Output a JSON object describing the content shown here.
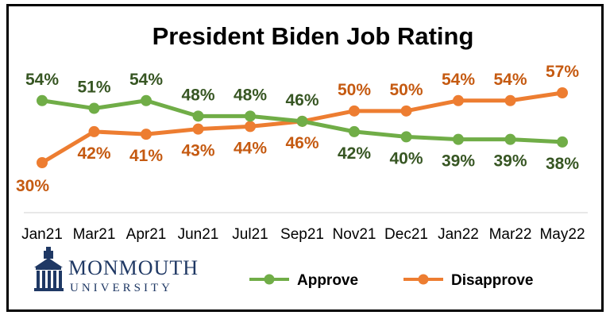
{
  "chart_data": {
    "type": "line",
    "title": "President Biden Job Rating",
    "categories": [
      "Jan21",
      "Mar21",
      "Apr21",
      "Jun21",
      "Jul21",
      "Sep21",
      "Nov21",
      "Dec21",
      "Jan22",
      "Mar22",
      "May22"
    ],
    "series": [
      {
        "name": "Approve",
        "color": "#70ad47",
        "label_color": "#375623",
        "values": [
          54,
          51,
          54,
          48,
          48,
          46,
          42,
          40,
          39,
          39,
          38
        ]
      },
      {
        "name": "Disapprove",
        "color": "#ed7d31",
        "label_color": "#c55a11",
        "values": [
          30,
          42,
          41,
          43,
          44,
          46,
          50,
          50,
          54,
          54,
          57
        ]
      }
    ],
    "value_suffix": "%",
    "grid": false,
    "legend_position": "bottom-right"
  },
  "logo": {
    "name": "MONMOUTH",
    "sub": "UNIVERSITY",
    "icon": "monmouth-building-logo-icon"
  }
}
